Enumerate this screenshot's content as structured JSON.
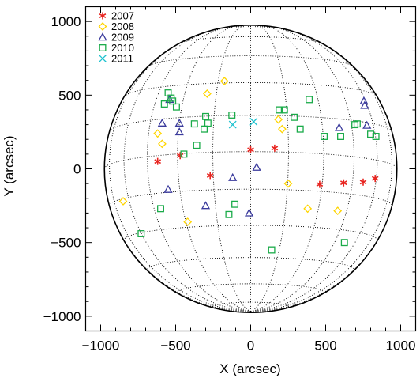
{
  "chart_data": {
    "type": "scatter",
    "title": "",
    "xlabel": "X (arcsec)",
    "ylabel": "Y (arcsec)",
    "xlim": [
      -1100,
      1100
    ],
    "ylim": [
      -1100,
      1100
    ],
    "xticks": [
      -1000,
      -500,
      0,
      500,
      1000
    ],
    "yticks": [
      -1000,
      -500,
      0,
      500,
      1000
    ],
    "xtick_labels": [
      "−1000",
      "−500",
      "0",
      "500",
      "1000"
    ],
    "ytick_labels": [
      "−1000",
      "−500",
      "0",
      "500",
      "1000"
    ],
    "solar_disk_radius": 975,
    "grid": "heliographic dotted grid on disk",
    "legend_position": "top-left",
    "series": [
      {
        "name": "2007",
        "marker": "asterisk",
        "color": "#e8241f",
        "points": [
          [
            -620,
            50
          ],
          [
            -470,
            90
          ],
          [
            -270,
            -45
          ],
          [
            0,
            130
          ],
          [
            160,
            140
          ],
          [
            460,
            -105
          ],
          [
            620,
            -95
          ],
          [
            750,
            -90
          ],
          [
            830,
            -65
          ]
        ]
      },
      {
        "name": "2008",
        "marker": "diamond",
        "color": "#ffd500",
        "points": [
          [
            -850,
            -220
          ],
          [
            -620,
            240
          ],
          [
            -590,
            170
          ],
          [
            -420,
            -360
          ],
          [
            -290,
            510
          ],
          [
            -175,
            595
          ],
          [
            185,
            335
          ],
          [
            210,
            270
          ],
          [
            250,
            -100
          ],
          [
            380,
            -270
          ],
          [
            580,
            -285
          ]
        ]
      },
      {
        "name": "2009",
        "marker": "triangle",
        "color": "#3a3a9c",
        "points": [
          [
            -590,
            310
          ],
          [
            -540,
            470
          ],
          [
            -550,
            -140
          ],
          [
            -475,
            310
          ],
          [
            -475,
            250
          ],
          [
            -300,
            -250
          ],
          [
            -120,
            -60
          ],
          [
            -10,
            -300
          ],
          [
            40,
            10
          ],
          [
            590,
            280
          ],
          [
            755,
            460
          ],
          [
            760,
            430
          ],
          [
            775,
            295
          ]
        ]
      },
      {
        "name": "2010",
        "marker": "square",
        "color": "#1aab49",
        "points": [
          [
            -730,
            -440
          ],
          [
            -600,
            -270
          ],
          [
            -575,
            440
          ],
          [
            -550,
            515
          ],
          [
            -530,
            480
          ],
          [
            -520,
            460
          ],
          [
            -495,
            420
          ],
          [
            -445,
            100
          ],
          [
            -375,
            305
          ],
          [
            -360,
            160
          ],
          [
            -300,
            355
          ],
          [
            -285,
            310
          ],
          [
            -310,
            270
          ],
          [
            -125,
            365
          ],
          [
            -145,
            -310
          ],
          [
            -105,
            -240
          ],
          [
            140,
            -550
          ],
          [
            190,
            400
          ],
          [
            225,
            400
          ],
          [
            290,
            350
          ],
          [
            330,
            270
          ],
          [
            390,
            470
          ],
          [
            490,
            220
          ],
          [
            600,
            220
          ],
          [
            625,
            -500
          ],
          [
            695,
            300
          ],
          [
            710,
            305
          ],
          [
            800,
            235
          ],
          [
            835,
            220
          ]
        ]
      },
      {
        "name": "2011",
        "marker": "cross",
        "color": "#1ec2cf",
        "points": [
          [
            -120,
            300
          ],
          [
            20,
            320
          ]
        ]
      }
    ]
  }
}
